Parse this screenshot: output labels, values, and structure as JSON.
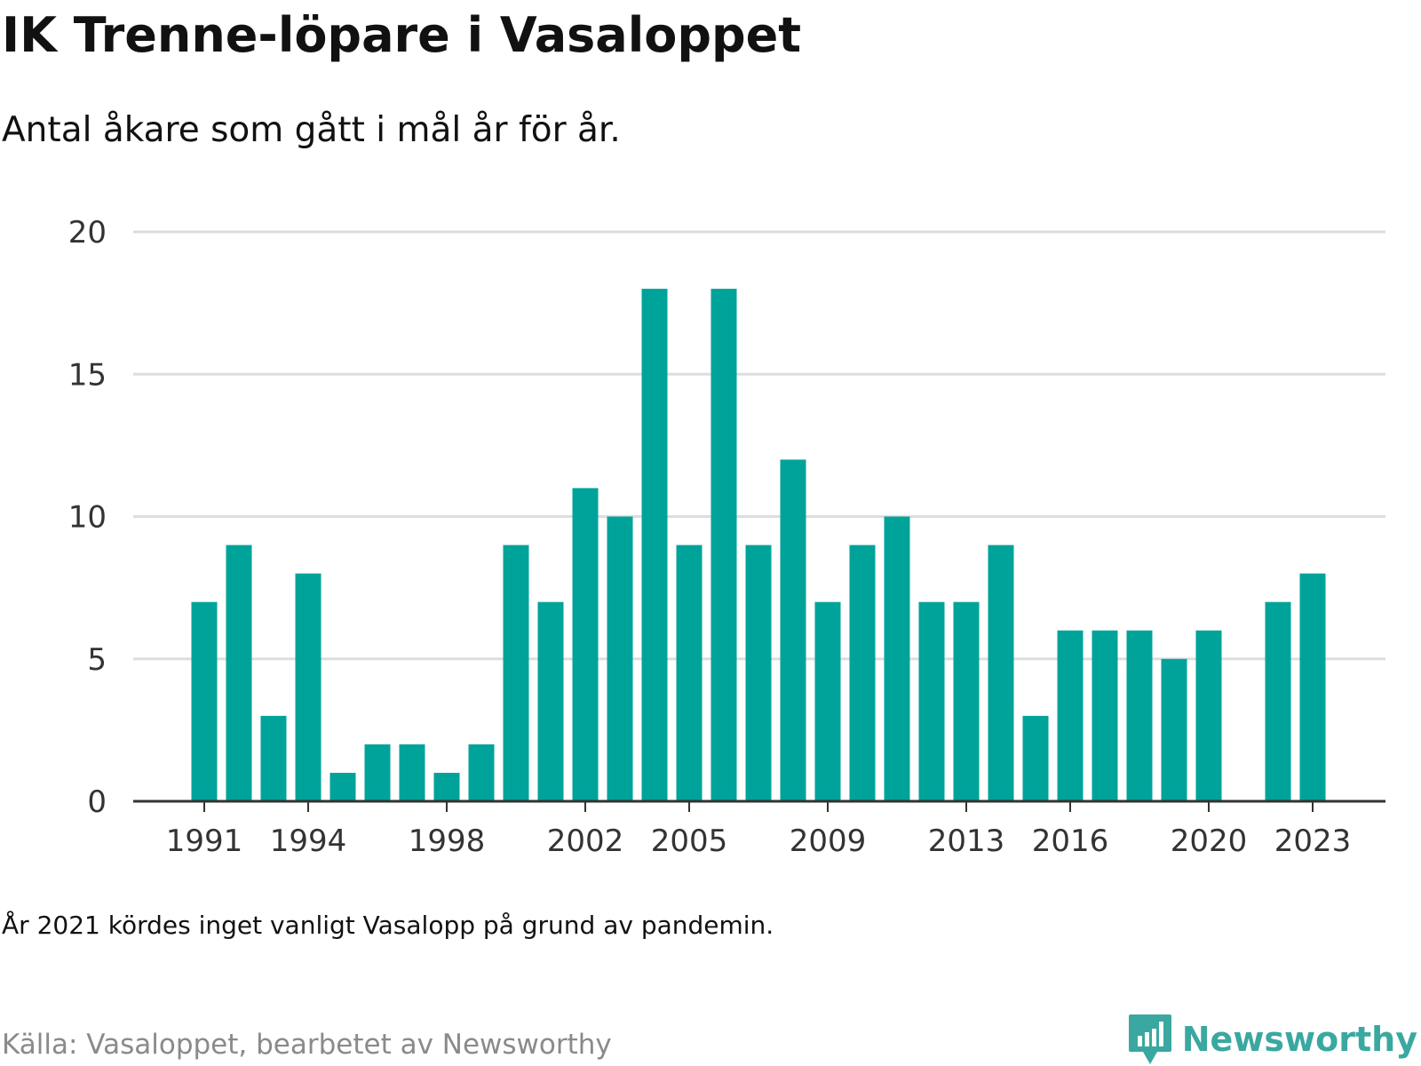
{
  "title": "IK Trenne-löpare i Vasaloppet",
  "subtitle": "Antal åkare som gått i mål år för år.",
  "note": "År 2021 kördes inget vanligt Vasalopp på grund av pandemin.",
  "source": "Källa: Vasaloppet, bearbetet av Newsworthy",
  "brand": {
    "name": "Newsworthy",
    "icon": "newsworthy-logo-icon",
    "color": "#3aa8a0"
  },
  "colors": {
    "bar": "#00a39a",
    "grid": "#dddddd",
    "axis": "#333333"
  },
  "chart_data": {
    "type": "bar",
    "title": "IK Trenne-löpare i Vasaloppet",
    "subtitle": "Antal åkare som gått i mål år för år.",
    "xlabel": "",
    "ylabel": "",
    "categories": [
      1991,
      1992,
      1993,
      1994,
      1995,
      1996,
      1997,
      1998,
      1999,
      2000,
      2001,
      2002,
      2003,
      2004,
      2005,
      2006,
      2007,
      2008,
      2009,
      2010,
      2011,
      2012,
      2013,
      2014,
      2015,
      2016,
      2017,
      2018,
      2019,
      2020,
      2021,
      2022,
      2023
    ],
    "values": [
      7,
      9,
      3,
      8,
      1,
      2,
      2,
      1,
      2,
      9,
      7,
      11,
      10,
      18,
      9,
      18,
      9,
      12,
      7,
      9,
      10,
      7,
      7,
      9,
      3,
      6,
      6,
      6,
      5,
      6,
      null,
      7,
      8
    ],
    "ylim": [
      0,
      20
    ],
    "yticks": [
      0,
      5,
      10,
      15,
      20
    ],
    "xticks": [
      1991,
      1994,
      1998,
      2002,
      2005,
      2009,
      2013,
      2016,
      2020,
      2023
    ],
    "grid": true,
    "legend": "none"
  }
}
